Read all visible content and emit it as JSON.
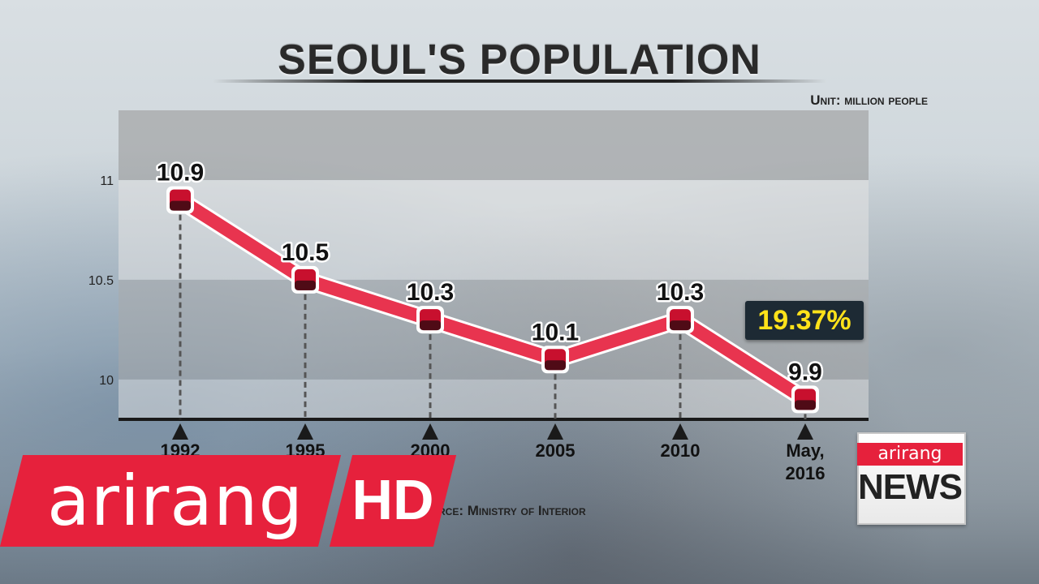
{
  "title": "SEOUL'S POPULATION",
  "unit_text": "Unit: million people",
  "source_text": "rce: Ministry of Interior",
  "callout": "19.37%",
  "colors": {
    "line": "#e8344f",
    "marker": "#c8102e",
    "callout_text": "#ffe21a",
    "brand_red": "#e6213c"
  },
  "logo": {
    "brand": "arirang",
    "hd": "HD",
    "news_brand": "arirang",
    "news_word": "NEWS"
  },
  "chart_data": {
    "type": "line",
    "title": "SEOUL'S POPULATION",
    "xlabel": "",
    "ylabel": "",
    "categories": [
      "1992",
      "1995",
      "2000",
      "2005",
      "2010",
      "May, 2016"
    ],
    "values": [
      10.9,
      10.5,
      10.3,
      10.1,
      10.3,
      9.9
    ],
    "data_labels": [
      "10.9",
      "10.5",
      "10.3",
      "10.1",
      "10.3",
      "9.9"
    ],
    "yticks": [
      10,
      10.5,
      11
    ],
    "ytick_labels": [
      "10",
      "10.5",
      "11"
    ],
    "ylim": [
      9.8,
      11.35
    ],
    "grid": true,
    "annotation": "19.37%"
  }
}
